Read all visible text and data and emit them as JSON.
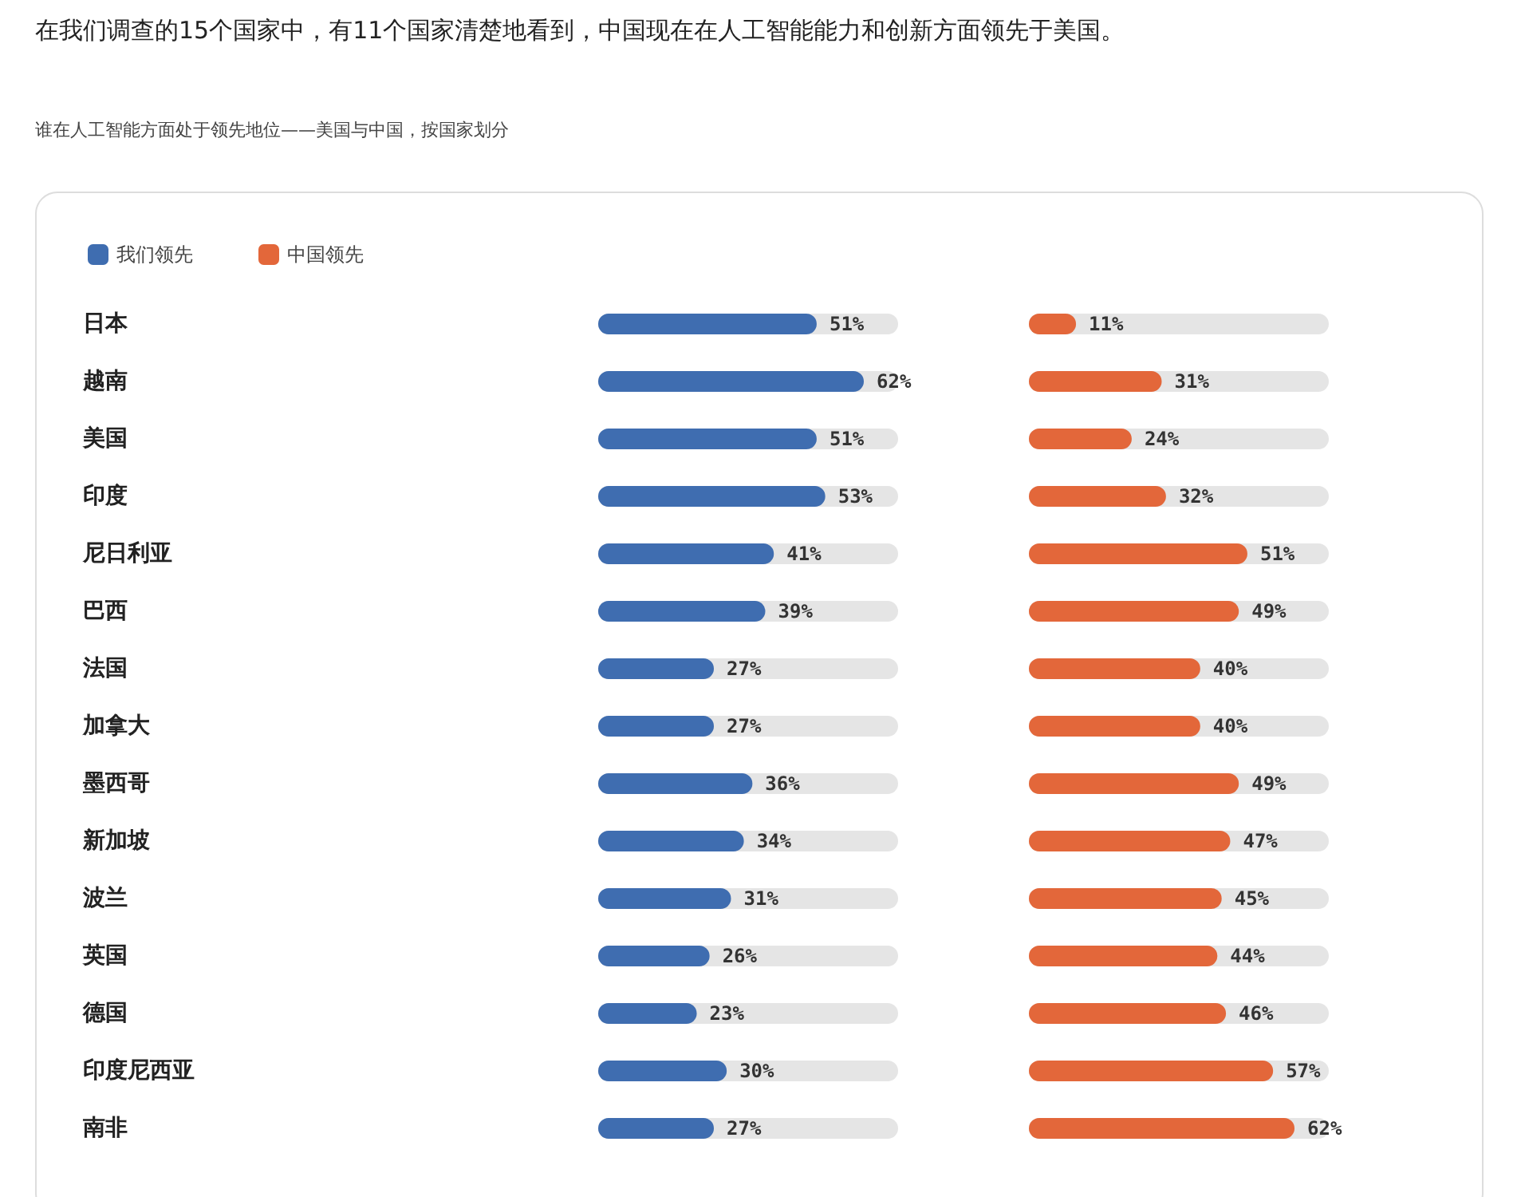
{
  "chart_data": [
    {
      "type": "bar",
      "orientation": "horizontal",
      "title": "在我们调查的15个国家中，有11个国家清楚地看到，中国现在在人工智能能力和创新方面领先于美国。",
      "subtitle": "谁在人工智能方面处于领先地位——美国与中国，按国家划分",
      "categories": [
        "日本",
        "越南",
        "美国",
        "印度",
        "尼日利亚",
        "巴西",
        "法国",
        "加拿大",
        "墨西哥",
        "新加坡",
        "波兰",
        "英国",
        "德国",
        "印度尼西亚",
        "南非"
      ],
      "series": [
        {
          "name": "我们领先",
          "color": "#3f6db0",
          "values": [
            51,
            62,
            51,
            53,
            41,
            39,
            27,
            27,
            36,
            34,
            31,
            26,
            23,
            30,
            27
          ],
          "value_labels": [
            "51%",
            "62%",
            "51%",
            "53%",
            "41%",
            "39%",
            "27%",
            "27%",
            "36%",
            "34%",
            "31%",
            "26%",
            "23%",
            "30%",
            "27%"
          ]
        }
      ],
      "legend": "top left",
      "tick_labels": "y"
    },
    {
      "type": "bar",
      "orientation": "horizontal",
      "categories": [
        null,
        null,
        null,
        null,
        null,
        null,
        null,
        null,
        null,
        null,
        null,
        null,
        null,
        null,
        null
      ],
      "series": [
        {
          "name": "中国领先",
          "color": "#e3673a",
          "values": [
            11,
            31,
            24,
            32,
            51,
            49,
            40,
            40,
            49,
            47,
            45,
            44,
            46,
            57,
            62
          ],
          "value_labels": [
            "11%",
            "31%",
            "24%",
            "32%",
            "51%",
            "49%",
            "40%",
            "40%",
            "49%",
            "47%",
            "45%",
            "44%",
            "46%",
            "57%",
            "62%"
          ]
        }
      ],
      "legend": "top left",
      "tick_labels": false
    }
  ]
}
